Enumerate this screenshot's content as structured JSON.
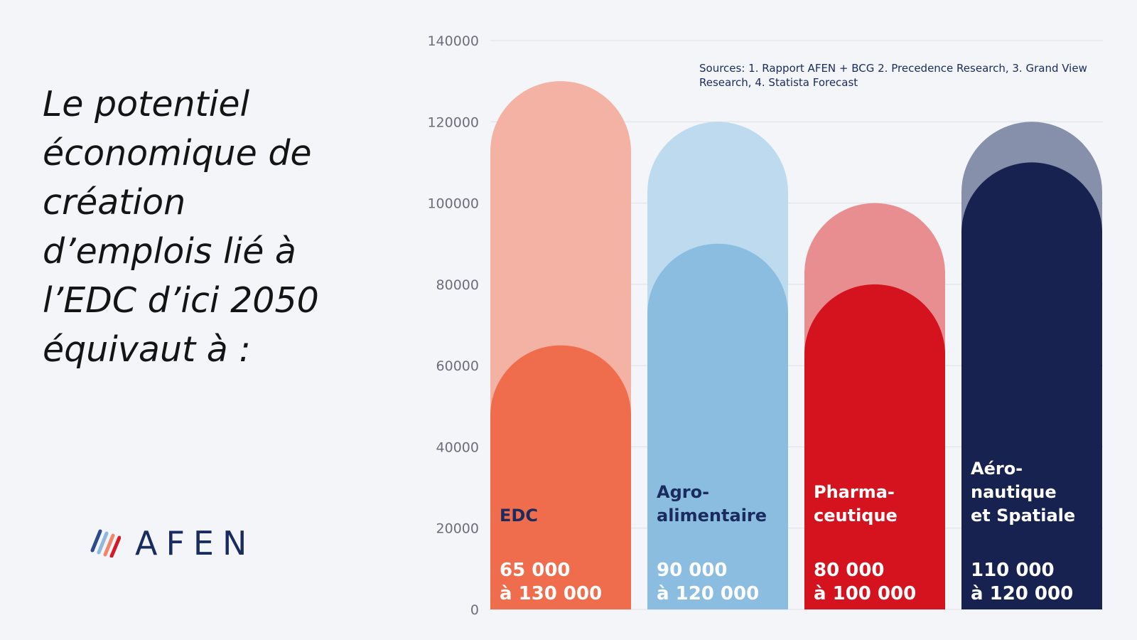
{
  "slide": {
    "headline_lines": [
      "Le potentiel",
      "économique de",
      "création",
      "d’emplois lié à",
      "l’EDC d’ici 2050",
      "équivaut à :"
    ],
    "logo_text": "AFEN",
    "logo_stripe_colors": [
      "#2e4a8a",
      "#8fb8dc",
      "#f1876a",
      "#d21a2a"
    ]
  },
  "chart_data": {
    "type": "bar",
    "title": "",
    "xlabel": "",
    "ylabel": "",
    "ylim": [
      0,
      140000
    ],
    "yticks": [
      0,
      20000,
      40000,
      60000,
      80000,
      100000,
      120000,
      140000
    ],
    "grid": true,
    "sources": [
      "Sources: 1.  Rapport AFEN + BCG 2. Precedence Research, 3. Grand View",
      "Research, 4. Statista Forecast"
    ],
    "categories": [
      {
        "label_lines": [
          "EDC"
        ],
        "low": 65000,
        "high": 130000,
        "range_lines": [
          "65 000",
          "à 130 000"
        ],
        "color_low": "#ef6d4d",
        "color_high": "#f3b2a3",
        "label_color": "#1a2b5e"
      },
      {
        "label_lines": [
          "Agro-",
          "alimentaire"
        ],
        "low": 90000,
        "high": 120000,
        "range_lines": [
          "90 000",
          "à 120 000"
        ],
        "color_low": "#8abde0",
        "color_high": "#bddaee",
        "label_color": "#1a2b5e"
      },
      {
        "label_lines": [
          "Pharma-",
          "ceutique"
        ],
        "low": 80000,
        "high": 100000,
        "range_lines": [
          "80 000",
          "à 100 000"
        ],
        "color_low": "#d4131f",
        "color_high": "#e88e90",
        "label_color": "#ffffff"
      },
      {
        "label_lines": [
          "Aéro-",
          "nautique",
          "et Spatiale"
        ],
        "low": 110000,
        "high": 120000,
        "range_lines": [
          "110 000",
          "à 120 000"
        ],
        "color_low": "#172251",
        "color_high": "#8790aa",
        "label_color": "#ffffff"
      }
    ]
  }
}
